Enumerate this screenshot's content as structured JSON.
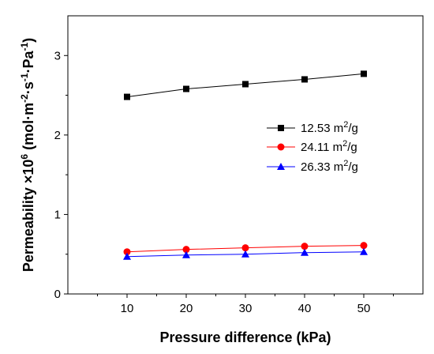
{
  "chart_data": {
    "type": "line",
    "title": "",
    "xlabel": "Pressure difference (kPa)",
    "ylabel_main": "Permeability ×10",
    "ylabel_exp": "6",
    "ylabel_unit": " (mol·m",
    "ylabel_unit_exp1": "-2",
    "ylabel_unit_mid": "·s",
    "ylabel_unit_exp2": "-1",
    "ylabel_unit_end": "·Pa",
    "ylabel_unit_exp3": "-1",
    "ylabel_close": ")",
    "xlim": [
      0,
      60
    ],
    "ylim": [
      0,
      3.5
    ],
    "x_ticks": [
      "10",
      "20",
      "30",
      "40",
      "50"
    ],
    "y_ticks": [
      "0",
      "1",
      "2",
      "3"
    ],
    "x": [
      10,
      20,
      30,
      40,
      50
    ],
    "legend_position": "center-right",
    "grid": false,
    "series": [
      {
        "name_main": "12.53 m",
        "name_exp": "2",
        "name_end": "/g",
        "color": "#000000",
        "marker": "square",
        "values": [
          2.48,
          2.58,
          2.64,
          2.7,
          2.77
        ]
      },
      {
        "name_main": "24.11 m",
        "name_exp": "2",
        "name_end": "/g",
        "color": "#ff0000",
        "marker": "circle",
        "values": [
          0.53,
          0.56,
          0.58,
          0.6,
          0.61
        ]
      },
      {
        "name_main": "26.33 m",
        "name_exp": "2",
        "name_end": "/g",
        "color": "#0000ff",
        "marker": "triangle",
        "values": [
          0.47,
          0.49,
          0.5,
          0.52,
          0.53
        ]
      }
    ]
  }
}
